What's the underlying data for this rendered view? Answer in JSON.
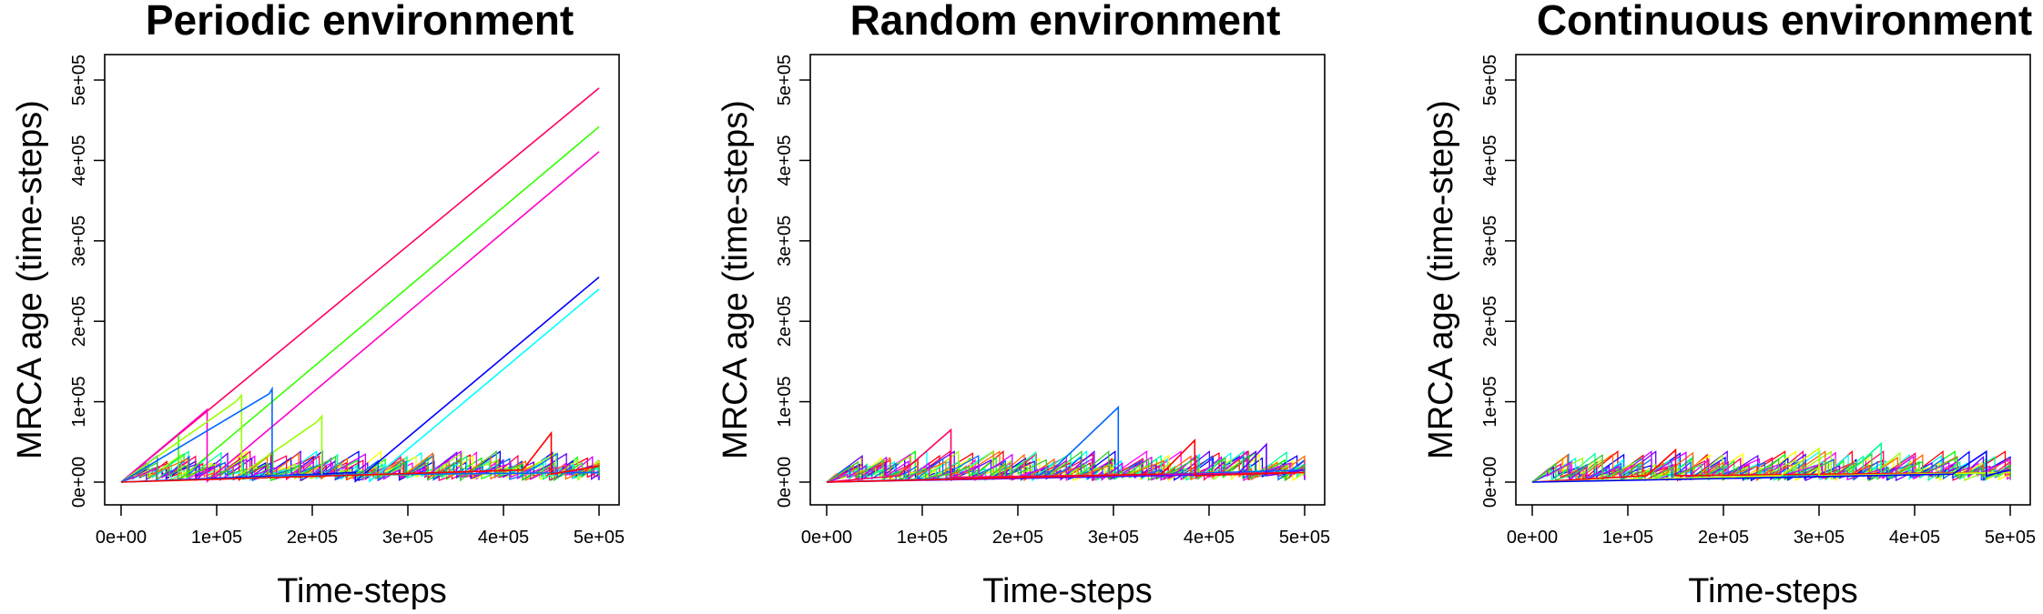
{
  "chart_data": [
    {
      "type": "line",
      "title": "Periodic environment",
      "xlabel": "Time-steps",
      "ylabel": "MRCA age (time-steps)",
      "xlim": [
        0,
        500000
      ],
      "ylim": [
        0,
        500000
      ],
      "xticks": [
        "0e+00",
        "1e+05",
        "2e+05",
        "3e+05",
        "4e+05",
        "5e+05"
      ],
      "yticks": [
        "0e+00",
        "1e+05",
        "2e+05",
        "3e+05",
        "4e+05",
        "5e+05"
      ],
      "grid": false,
      "series": [
        {
          "color": "#FF0066",
          "x": [
            0,
            500000
          ],
          "y": [
            0,
            490000
          ]
        },
        {
          "color": "#33FF00",
          "x": [
            0,
            60000,
            60000,
            500000
          ],
          "y": [
            0,
            60000,
            2000,
            442000
          ]
        },
        {
          "color": "#FF00CC",
          "x": [
            0,
            90000,
            90000,
            500000
          ],
          "y": [
            0,
            90000,
            1000,
            411000
          ]
        },
        {
          "color": "#0000FF",
          "x": [
            0,
            245000,
            245000,
            500000
          ],
          "y": [
            0,
            12000,
            1000,
            255000
          ]
        },
        {
          "color": "#00FFFF",
          "x": [
            0,
            260000,
            260000,
            500000
          ],
          "y": [
            0,
            10000,
            1000,
            240000
          ]
        },
        {
          "color": "#99FF00",
          "x": [
            0,
            120000,
            126000,
            126000,
            205000,
            210000,
            210000,
            500000
          ],
          "y": [
            0,
            100000,
            108000,
            10000,
            75000,
            82000,
            8000,
            12000
          ]
        },
        {
          "color": "#0066FF",
          "x": [
            0,
            155000,
            158000,
            158000,
            500000
          ],
          "y": [
            0,
            110000,
            116000,
            8000,
            12000
          ]
        },
        {
          "color": "#FF0000",
          "x": [
            0,
            420000,
            450000,
            450000,
            500000
          ],
          "y": [
            0,
            15000,
            61000,
            10000,
            20000
          ]
        }
      ]
    },
    {
      "type": "line",
      "title": "Random environment",
      "xlabel": "Time-steps",
      "ylabel": "MRCA age (time-steps)",
      "xlim": [
        0,
        500000
      ],
      "ylim": [
        0,
        500000
      ],
      "xticks": [
        "0e+00",
        "1e+05",
        "2e+05",
        "3e+05",
        "4e+05",
        "5e+05"
      ],
      "yticks": [
        "0e+00",
        "1e+05",
        "2e+05",
        "3e+05",
        "4e+05",
        "5e+05"
      ],
      "grid": false,
      "series": [
        {
          "color": "#0066FF",
          "x": [
            0,
            230000,
            305000,
            305000,
            500000
          ],
          "y": [
            0,
            8000,
            93000,
            8000,
            15000
          ]
        },
        {
          "color": "#FF0066",
          "x": [
            0,
            75000,
            130000,
            130000,
            500000
          ],
          "y": [
            0,
            8000,
            65000,
            6000,
            12000
          ]
        },
        {
          "color": "#6600FF",
          "x": [
            0,
            430000,
            460000,
            460000,
            500000
          ],
          "y": [
            0,
            10000,
            47000,
            8000,
            15000
          ]
        },
        {
          "color": "#FF0000",
          "x": [
            0,
            350000,
            385000,
            385000,
            500000
          ],
          "y": [
            0,
            10000,
            52000,
            8000,
            12000
          ]
        }
      ]
    },
    {
      "type": "line",
      "title": "Continuous environment",
      "xlabel": "Time-steps",
      "ylabel": "MRCA age (time-steps)",
      "xlim": [
        0,
        500000
      ],
      "ylim": [
        0,
        500000
      ],
      "xticks": [
        "0e+00",
        "1e+05",
        "2e+05",
        "3e+05",
        "4e+05",
        "5e+05"
      ],
      "yticks": [
        "0e+00",
        "1e+05",
        "2e+05",
        "3e+05",
        "4e+05",
        "5e+05"
      ],
      "grid": false,
      "series": [
        {
          "color": "#00FF99",
          "x": [
            0,
            330000,
            365000,
            365000,
            500000
          ],
          "y": [
            0,
            10000,
            48000,
            8000,
            12000
          ]
        },
        {
          "color": "#FF0000",
          "x": [
            0,
            120000,
            150000,
            150000,
            500000
          ],
          "y": [
            0,
            8000,
            40000,
            8000,
            12000
          ]
        },
        {
          "color": "#CCFF00",
          "x": [
            0,
            260000,
            300000,
            300000,
            500000
          ],
          "y": [
            0,
            8000,
            42000,
            8000,
            12000
          ]
        },
        {
          "color": "#0000FF",
          "x": [
            0,
            440000,
            475000,
            475000,
            500000
          ],
          "y": [
            0,
            10000,
            38000,
            8000,
            15000
          ]
        }
      ]
    }
  ]
}
